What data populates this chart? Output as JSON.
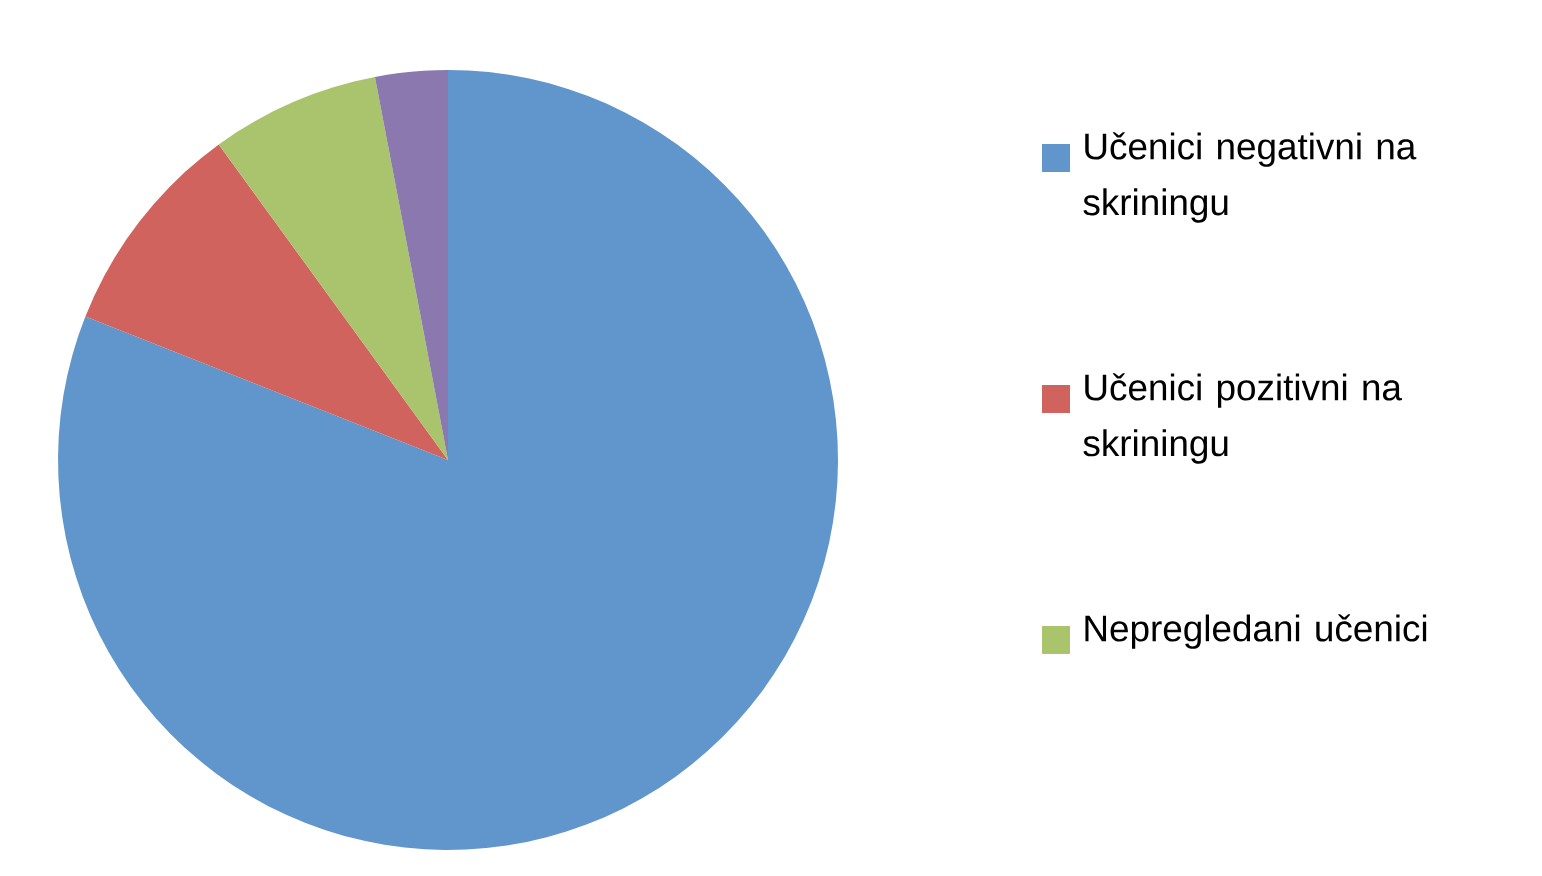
{
  "chart_data": {
    "type": "pie",
    "categories": [
      "Učenici negativni na skriningu",
      "Učenici pozitivni na skriningu",
      "Nepregledani učenici",
      null
    ],
    "values": [
      81,
      9,
      7,
      3
    ],
    "colors": [
      "#6096cb",
      "#d0635e",
      "#a9c46c",
      "#8b78ae"
    ],
    "legend": "right"
  }
}
